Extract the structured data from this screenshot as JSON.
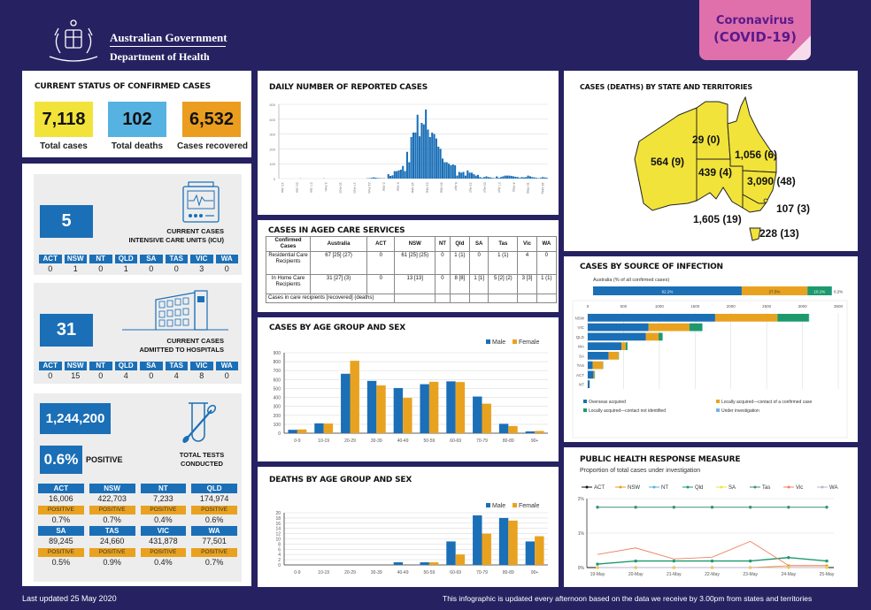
{
  "header": {
    "gov_line1": "Australian Government",
    "gov_line2": "Department of Health",
    "badge_line1": "Coronavirus",
    "badge_line2": "(COVID-19)"
  },
  "status": {
    "title": "CURRENT STATUS OF CONFIRMED CASES",
    "total_cases": "7,118",
    "total_cases_label": "Total cases",
    "total_deaths": "102",
    "total_deaths_label": "Total deaths",
    "recovered": "6,532",
    "recovered_label": "Cases recovered",
    "colors": {
      "cases": "#f2e33a",
      "deaths": "#56b2e0",
      "recovered": "#eb9d1f"
    }
  },
  "states": [
    "ACT",
    "NSW",
    "NT",
    "QLD",
    "SA",
    "TAS",
    "VIC",
    "WA"
  ],
  "icu": {
    "value": "5",
    "label_line1": "CURRENT CASES",
    "label_line2": "INTENSIVE CARE UNITS (ICU)",
    "by_state": [
      "0",
      "1",
      "0",
      "1",
      "0",
      "0",
      "3",
      "0"
    ]
  },
  "hospital": {
    "value": "31",
    "label_line1": "CURRENT CASES",
    "label_line2": "ADMITTED TO HOSPITALS",
    "by_state": [
      "0",
      "15",
      "0",
      "4",
      "0",
      "4",
      "8",
      "0"
    ]
  },
  "tests": {
    "total": "1,244,200",
    "positive_pct": "0.6%",
    "positive_label": "POSITIVE",
    "label_line1": "TOTAL TESTS",
    "label_line2": "CONDUCTED",
    "positive_tag": "POSITIVE",
    "by_state": [
      {
        "state": "ACT",
        "tests": "16,006",
        "positive": "0.7%"
      },
      {
        "state": "NSW",
        "tests": "422,703",
        "positive": "0.7%"
      },
      {
        "state": "NT",
        "tests": "7,233",
        "positive": "0.4%"
      },
      {
        "state": "QLD",
        "tests": "174,974",
        "positive": "0.6%"
      },
      {
        "state": "SA",
        "tests": "89,245",
        "positive": "0.5%"
      },
      {
        "state": "TAS",
        "tests": "24,660",
        "positive": "0.9%"
      },
      {
        "state": "VIC",
        "tests": "431,878",
        "positive": "0.4%"
      },
      {
        "state": "WA",
        "tests": "77,501",
        "positive": "0.7%"
      }
    ]
  },
  "aged_care": {
    "title": "CASES IN AGED CARE SERVICES",
    "headers": [
      "Confirmed Cases",
      "Australia",
      "ACT",
      "NSW",
      "NT",
      "Qld",
      "SA",
      "Tas",
      "Vic",
      "WA"
    ],
    "rows": [
      [
        "Residential Care Recipients",
        "67 [25] (27)",
        "0",
        "61 [25] (25)",
        "0",
        "1 (1)",
        "0",
        "1 (1)",
        "4",
        "0"
      ],
      [
        "In Home Care Recipients",
        "31 [27] (3)",
        "0",
        "13 [13]",
        "0",
        "8 [8]",
        "1 [1]",
        "5 [2] (2)",
        "3 [3]",
        "1 (1)"
      ]
    ],
    "footnote": "Cases in care recipients [recovered] (deaths)"
  },
  "map": {
    "title": "CASES (DEATHS) BY STATE AND TERRITORIES",
    "labels": {
      "WA": "564 (9)",
      "NT": "29 (0)",
      "QLD": "1,056 (6)",
      "SA": "439 (4)",
      "NSW": "3,090 (48)",
      "ACT": "107 (3)",
      "VIC": "1,605 (19)",
      "TAS": "228 (13)"
    },
    "fill": "#f2e33a"
  },
  "chart_data": [
    {
      "type": "bar",
      "title": "DAILY NUMBER OF REPORTED CASES",
      "ylim": [
        0,
        500
      ],
      "yticks": [
        0,
        100,
        200,
        300,
        400,
        500
      ],
      "xticks": [
        "13-Jan",
        "20-Jan",
        "27-Jan",
        "3-Feb",
        "10-Feb",
        "17-Feb",
        "24-Feb",
        "2-Mar",
        "9-Mar",
        "16-Mar",
        "23-Mar",
        "30-Mar",
        "6-Apr",
        "13-Apr",
        "20-Apr",
        "27-Apr",
        "4-May",
        "11-May",
        "18-May"
      ],
      "values": [
        0,
        0,
        0,
        0,
        0,
        0,
        0,
        0,
        0,
        0,
        1,
        0,
        0,
        0,
        0,
        0,
        0,
        0,
        0,
        0,
        0,
        1,
        0,
        0,
        0,
        0,
        0,
        0,
        0,
        0,
        0,
        0,
        0,
        0,
        0,
        0,
        0,
        0,
        0,
        0,
        0,
        0,
        2,
        3,
        5,
        8,
        6,
        3,
        3,
        2,
        2,
        0,
        30,
        18,
        22,
        50,
        50,
        55,
        60,
        85,
        50,
        180,
        110,
        280,
        310,
        310,
        430,
        285,
        375,
        365,
        465,
        330,
        280,
        310,
        300,
        270,
        215,
        200,
        135,
        110,
        110,
        100,
        90,
        95,
        90,
        20,
        45,
        40,
        45,
        20,
        55,
        40,
        40,
        30,
        20,
        25,
        10,
        5,
        10,
        15,
        10,
        8,
        5,
        3,
        15,
        5,
        10,
        15,
        20,
        20,
        20,
        18,
        15,
        12,
        10,
        5,
        10,
        8,
        10,
        20,
        15,
        10,
        8,
        5,
        3,
        5,
        10,
        8,
        5
      ]
    },
    {
      "type": "bar",
      "title": "CASES BY AGE GROUP AND SEX",
      "categories": [
        "0-9",
        "10-19",
        "20-29",
        "30-39",
        "40-49",
        "50-59",
        "60-69",
        "70-79",
        "80-89",
        "90+"
      ],
      "series": [
        {
          "name": "Male",
          "color": "#1a6fb7",
          "values": [
            38,
            110,
            665,
            585,
            505,
            548,
            580,
            410,
            105,
            20
          ]
        },
        {
          "name": "Female",
          "color": "#e9a21f",
          "values": [
            42,
            108,
            810,
            535,
            395,
            575,
            572,
            330,
            80,
            25
          ]
        }
      ],
      "ylim": [
        0,
        900
      ],
      "yticks": [
        0,
        100,
        200,
        300,
        400,
        500,
        600,
        700,
        800,
        900
      ],
      "legend": "top-right"
    },
    {
      "type": "bar",
      "title": "DEATHS BY AGE GROUP AND SEX",
      "categories": [
        "0-9",
        "10-19",
        "20-29",
        "30-39",
        "40-49",
        "50-59",
        "60-69",
        "70-79",
        "80-89",
        "90+"
      ],
      "series": [
        {
          "name": "Male",
          "color": "#1a6fb7",
          "values": [
            0,
            0,
            0,
            0,
            1,
            1,
            9,
            19,
            18,
            9
          ]
        },
        {
          "name": "Female",
          "color": "#e9a21f",
          "values": [
            0,
            0,
            0,
            0,
            0,
            1,
            4,
            12,
            17,
            11
          ]
        }
      ],
      "ylim": [
        0,
        20
      ],
      "yticks": [
        0,
        2,
        4,
        6,
        8,
        10,
        12,
        14,
        16,
        18,
        20
      ],
      "legend": "top-right"
    },
    {
      "type": "bar",
      "title": "CASES BY SOURCE OF INFECTION",
      "subtitle": "Australia (% of all confirmed cases)",
      "overall_pct": [
        {
          "name": "Overseas acquired",
          "value": 62.2,
          "label": "62.2%"
        },
        {
          "name": "Locally acquired—contact of a confirmed case",
          "value": 27.5,
          "label": "27.5%"
        },
        {
          "name": "Locally acquired—contact not identified",
          "value": 10.1,
          "label": "10.1%"
        },
        {
          "name": "Under investigation",
          "value": 0.2,
          "label": "0.2%"
        }
      ],
      "categories": [
        "NSW",
        "VIC",
        "QLD",
        "WA",
        "SA",
        "TAS",
        "ACT",
        "NT"
      ],
      "series": [
        {
          "name": "Overseas acquired",
          "color": "#1a6fb7",
          "values": [
            1780,
            850,
            810,
            470,
            290,
            70,
            80,
            25
          ]
        },
        {
          "name": "Locally acquired—contact of a confirmed case",
          "color": "#e9a21f",
          "values": [
            870,
            570,
            180,
            60,
            140,
            140,
            15,
            3
          ]
        },
        {
          "name": "Locally acquired—contact not identified",
          "color": "#1d9a6c",
          "values": [
            440,
            180,
            55,
            25,
            5,
            5,
            5,
            1
          ]
        },
        {
          "name": "Under investigation",
          "color": "#6fb4e6",
          "values": [
            5,
            5,
            2,
            2,
            1,
            1,
            1,
            0
          ]
        }
      ],
      "xlim": [
        0,
        3500
      ],
      "xticks": [
        0,
        500,
        1000,
        1500,
        2000,
        2500,
        3000,
        3500
      ],
      "legend": "bottom"
    },
    {
      "type": "line",
      "title": "PUBLIC HEALTH RESPONSE MEASURE",
      "subtitle": "Proportion of total cases under investigation",
      "x": [
        "19-May",
        "20-May",
        "21-May",
        "22-May",
        "23-May",
        "24-May",
        "25-May"
      ],
      "series": [
        {
          "name": "ACT",
          "color": "#111111",
          "values": [
            0,
            0,
            0,
            0,
            0,
            0,
            0
          ]
        },
        {
          "name": "NSW",
          "color": "#e9a21f",
          "values": [
            0,
            0,
            0,
            0,
            0,
            0.05,
            0.05
          ]
        },
        {
          "name": "NT",
          "color": "#56b2e0",
          "values": [
            0,
            0,
            0,
            0,
            0,
            0,
            0
          ]
        },
        {
          "name": "Qld",
          "color": "#1d9a6c",
          "values": [
            0.1,
            0.19,
            0.19,
            0.19,
            0.19,
            0.29,
            0.19
          ]
        },
        {
          "name": "SA",
          "color": "#f2e33a",
          "values": [
            0,
            0,
            0,
            0,
            0,
            0,
            0
          ]
        },
        {
          "name": "Tas",
          "color": "#3f8f7f",
          "values": [
            1.75,
            1.75,
            1.75,
            1.75,
            1.75,
            1.75,
            1.75
          ]
        },
        {
          "name": "Vic",
          "color": "#f08060",
          "values": [
            0.38,
            0.57,
            0.25,
            0.3,
            0.76,
            0.06,
            0.06
          ]
        },
        {
          "name": "WA",
          "color": "#c0b0d0",
          "values": [
            0,
            0,
            0,
            0,
            0,
            0,
            0
          ]
        }
      ],
      "ylim": [
        0,
        2
      ],
      "yticks": [
        "0%",
        "1%",
        "2%"
      ],
      "legend": "top"
    }
  ],
  "footer": {
    "last_updated": "Last updated 25 May 2020",
    "note": "This infographic is updated every afternoon based on the data we receive by 3.00pm from states and territories"
  }
}
